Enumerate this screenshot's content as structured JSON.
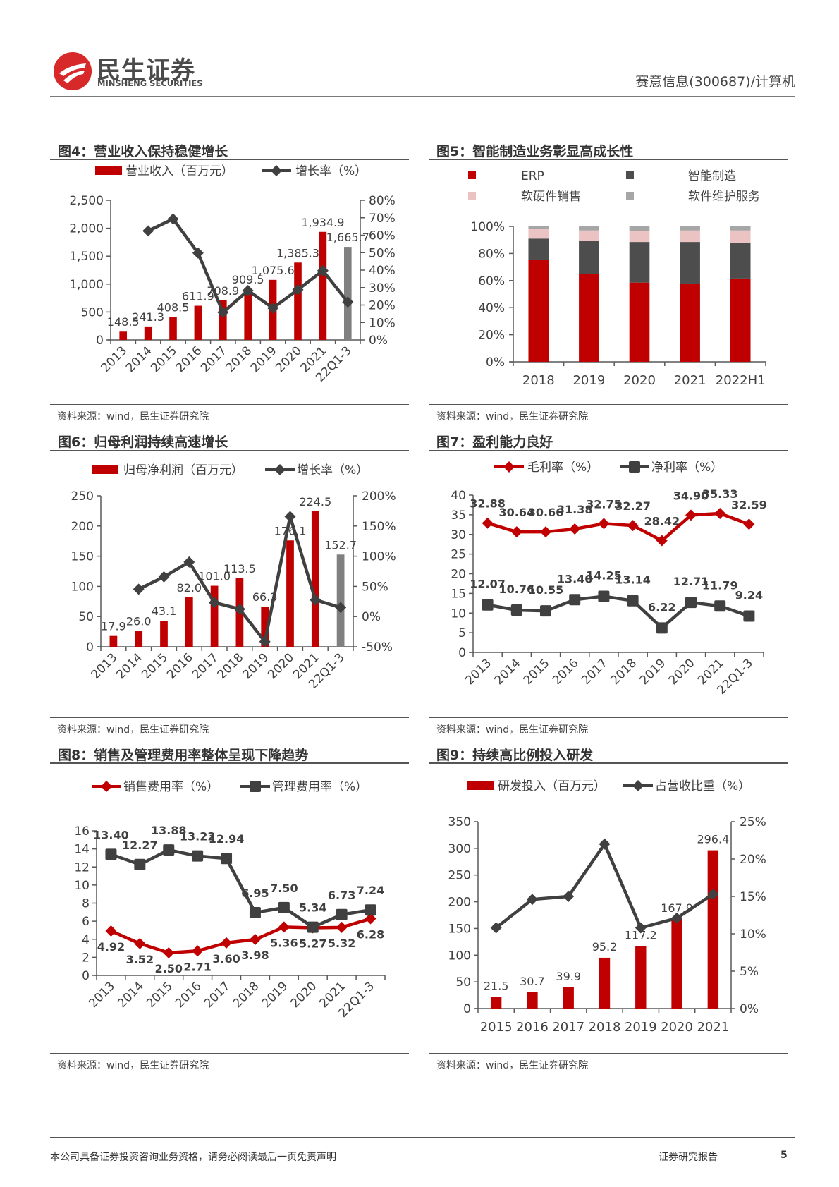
{
  "header": {
    "logo_cn": "民生证券",
    "logo_en": "MINSHENG SECURITIES",
    "doc_tag": "赛意信息(300687)/计算机"
  },
  "figures": [
    {
      "title": "图4：营业收入保持稳健增长",
      "source": "资料来源：wind，民生证券研究院"
    },
    {
      "title": "图5：智能制造业务彰显高成长性",
      "source": "资料来源：wind，民生证券研究院"
    },
    {
      "title": "图6：归母利润持续高速增长",
      "source": "资料来源：wind，民生证券研究院"
    },
    {
      "title": "图7：盈利能力良好",
      "source": "资料来源：wind，民生证券研究院"
    },
    {
      "title": "图8：销售及管理费用率整体呈现下降趋势",
      "source": "资料来源：wind，民生证券研究院"
    },
    {
      "title": "图9：持续高比例投入研发",
      "source": "资料来源：wind，民生证券研究院"
    }
  ],
  "footer": {
    "note": "本公司具备证券投资咨询业务资格，请务必阅读最后一页免责声明",
    "tag": "证券研究报告",
    "page": "5"
  },
  "chart_data": [
    {
      "type": "bar+line",
      "categories": [
        "2013",
        "2014",
        "2015",
        "2016",
        "2017",
        "2018",
        "2019",
        "2020",
        "2021",
        "22Q1-3"
      ],
      "series": [
        {
          "name": "营业收入（百万元）",
          "kind": "bar",
          "axis": "left",
          "color": "#C00000",
          "last_color": "#808080",
          "values": [
            148.5,
            241.3,
            408.5,
            611.9,
            708.9,
            909.5,
            1075.6,
            1385.3,
            1934.9,
            1665.7
          ],
          "data_labels": [
            "148.5",
            "241.3",
            "408.5",
            "611.9",
            "708.9",
            "909.5",
            "1,075.6",
            "1,385.3",
            "1,934.9",
            "1,665.7"
          ]
        },
        {
          "name": "增长率（%）",
          "kind": "line",
          "axis": "right",
          "marker": "diamond",
          "color": "#404040",
          "values": [
            null,
            62.5,
            69.3,
            49.8,
            15.8,
            28.3,
            18.3,
            28.8,
            39.7,
            21.7
          ]
        }
      ],
      "y_left": {
        "range": [
          0,
          2500
        ],
        "ticks": [
          "0",
          "500",
          "1,000",
          "1,500",
          "2,000",
          "2,500"
        ]
      },
      "y_right": {
        "range": [
          0,
          80
        ],
        "ticks": [
          "0%",
          "10%",
          "20%",
          "30%",
          "40%",
          "50%",
          "60%",
          "70%",
          "80%"
        ]
      },
      "legend": "top",
      "grid": false
    },
    {
      "type": "bar-stacked-100",
      "categories": [
        "2018",
        "2019",
        "2020",
        "2021",
        "2022H1"
      ],
      "series": [
        {
          "name": "ERP",
          "color": "#C00000",
          "values": [
            75,
            65,
            58.5,
            57.5,
            61.5
          ]
        },
        {
          "name": "智能制造",
          "color": "#4D4D4D",
          "values": [
            16,
            24.5,
            30,
            31,
            26.5
          ]
        },
        {
          "name": "软硬件销售",
          "color": "#EBC3C3",
          "values": [
            7,
            7.5,
            8,
            8.5,
            9
          ]
        },
        {
          "name": "软件维护服务",
          "color": "#A6A6A6",
          "values": [
            2,
            3,
            3.5,
            3,
            3
          ]
        }
      ],
      "y_left": {
        "range": [
          0,
          100
        ],
        "ticks": [
          "0%",
          "20%",
          "40%",
          "60%",
          "80%",
          "100%"
        ]
      },
      "legend": "top",
      "grid": false
    },
    {
      "type": "bar+line",
      "categories": [
        "2013",
        "2014",
        "2015",
        "2016",
        "2017",
        "2018",
        "2019",
        "2020",
        "2021",
        "22Q1-3"
      ],
      "series": [
        {
          "name": "归母净利润（百万元）",
          "kind": "bar",
          "axis": "left",
          "color": "#C00000",
          "last_color": "#808080",
          "values": [
            17.9,
            26.0,
            43.1,
            82.0,
            101.0,
            113.5,
            66.3,
            176.1,
            224.5,
            152.7
          ],
          "data_labels": [
            "17.9",
            "26.0",
            "43.1",
            "82.0",
            "101.0",
            "113.5",
            "66.3",
            "176.1",
            "224.5",
            "152.7"
          ]
        },
        {
          "name": "增长率（%）",
          "kind": "line",
          "axis": "right",
          "marker": "diamond",
          "color": "#404040",
          "values": [
            null,
            45.3,
            65.8,
            90.3,
            23.2,
            12.4,
            -41.6,
            165.6,
            27.6,
            15.0
          ]
        }
      ],
      "y_left": {
        "range": [
          0,
          250
        ],
        "ticks": [
          "0",
          "50",
          "100",
          "150",
          "200",
          "250"
        ]
      },
      "y_right": {
        "range": [
          -50,
          200
        ],
        "ticks": [
          "-50%",
          "0%",
          "50%",
          "100%",
          "150%",
          "200%"
        ]
      },
      "legend": "top",
      "grid": false
    },
    {
      "type": "line",
      "categories": [
        "2013",
        "2014",
        "2015",
        "2016",
        "2017",
        "2018",
        "2019",
        "2020",
        "2021",
        "22Q1-3"
      ],
      "series": [
        {
          "name": "毛利率（%）",
          "kind": "line",
          "axis": "left",
          "marker": "diamond",
          "color": "#C00000",
          "values": [
            32.88,
            30.64,
            30.66,
            31.38,
            32.75,
            32.27,
            28.42,
            34.9,
            35.33,
            32.59
          ],
          "data_labels": [
            "32.88",
            "30.64",
            "30.66",
            "31.38",
            "32.75",
            "32.27",
            "28.42",
            "34.90",
            "35.33",
            "32.59"
          ]
        },
        {
          "name": "净利率（%）",
          "kind": "line",
          "axis": "left",
          "marker": "square",
          "color": "#404040",
          "values": [
            12.07,
            10.76,
            10.55,
            13.4,
            14.25,
            13.14,
            6.22,
            12.71,
            11.79,
            9.24
          ],
          "data_labels": [
            "12.07",
            "10.76",
            "10.55",
            "13.40",
            "14.25",
            "13.14",
            "6.22",
            "12.71",
            "11.79",
            "9.24"
          ]
        }
      ],
      "y_left": {
        "range": [
          0,
          40
        ],
        "ticks": [
          "0",
          "5",
          "10",
          "15",
          "20",
          "25",
          "30",
          "35",
          "40"
        ]
      },
      "legend": "top",
      "grid": false
    },
    {
      "type": "line",
      "categories": [
        "2013",
        "2014",
        "2015",
        "2016",
        "2017",
        "2018",
        "2019",
        "2020",
        "2021",
        "22Q1-3"
      ],
      "series": [
        {
          "name": "销售费用率（%）",
          "kind": "line",
          "axis": "left",
          "marker": "diamond",
          "color": "#C00000",
          "values": [
            4.92,
            3.52,
            2.5,
            2.71,
            3.6,
            3.98,
            5.36,
            5.27,
            5.32,
            6.28
          ],
          "data_labels": [
            "4.92",
            "3.52",
            "2.50",
            "2.71",
            "3.60",
            "3.98",
            "5.36",
            "5.27",
            "5.32",
            "6.28"
          ]
        },
        {
          "name": "管理费用率（%）",
          "kind": "line",
          "axis": "left",
          "marker": "square",
          "color": "#404040",
          "values": [
            13.4,
            12.27,
            13.88,
            13.22,
            12.94,
            6.95,
            7.5,
            5.34,
            6.73,
            7.24
          ],
          "data_labels": [
            "13.40",
            "12.27",
            "13.88",
            "13.22",
            "12.94",
            "6.95",
            "7.50",
            "5.34",
            "6.73",
            "7.24"
          ]
        }
      ],
      "y_left": {
        "range": [
          0,
          16
        ],
        "ticks": [
          "0",
          "2",
          "4",
          "6",
          "8",
          "10",
          "12",
          "14",
          "16"
        ]
      },
      "legend": "top",
      "grid": false
    },
    {
      "type": "bar+line",
      "categories": [
        "2015",
        "2016",
        "2017",
        "2018",
        "2019",
        "2020",
        "2021"
      ],
      "series": [
        {
          "name": "研发投入（百万元）",
          "kind": "bar",
          "axis": "left",
          "color": "#C00000",
          "values": [
            21.5,
            30.7,
            39.9,
            95.2,
            117.2,
            167.9,
            296.4
          ],
          "data_labels": [
            "21.5",
            "30.7",
            "39.9",
            "95.2",
            "117.2",
            "167.9",
            "296.4"
          ]
        },
        {
          "name": "占营收比重（%）",
          "kind": "line",
          "axis": "right",
          "marker": "diamond",
          "color": "#404040",
          "values": [
            10.8,
            14.6,
            15.0,
            22.0,
            10.8,
            12.1,
            15.3
          ]
        }
      ],
      "y_left": {
        "range": [
          0,
          350
        ],
        "ticks": [
          "0",
          "50",
          "100",
          "150",
          "200",
          "250",
          "300",
          "350"
        ]
      },
      "y_right": {
        "range": [
          0,
          25
        ],
        "ticks": [
          "0%",
          "5%",
          "10%",
          "15%",
          "20%",
          "25%"
        ]
      },
      "legend": "top",
      "grid": false
    }
  ]
}
